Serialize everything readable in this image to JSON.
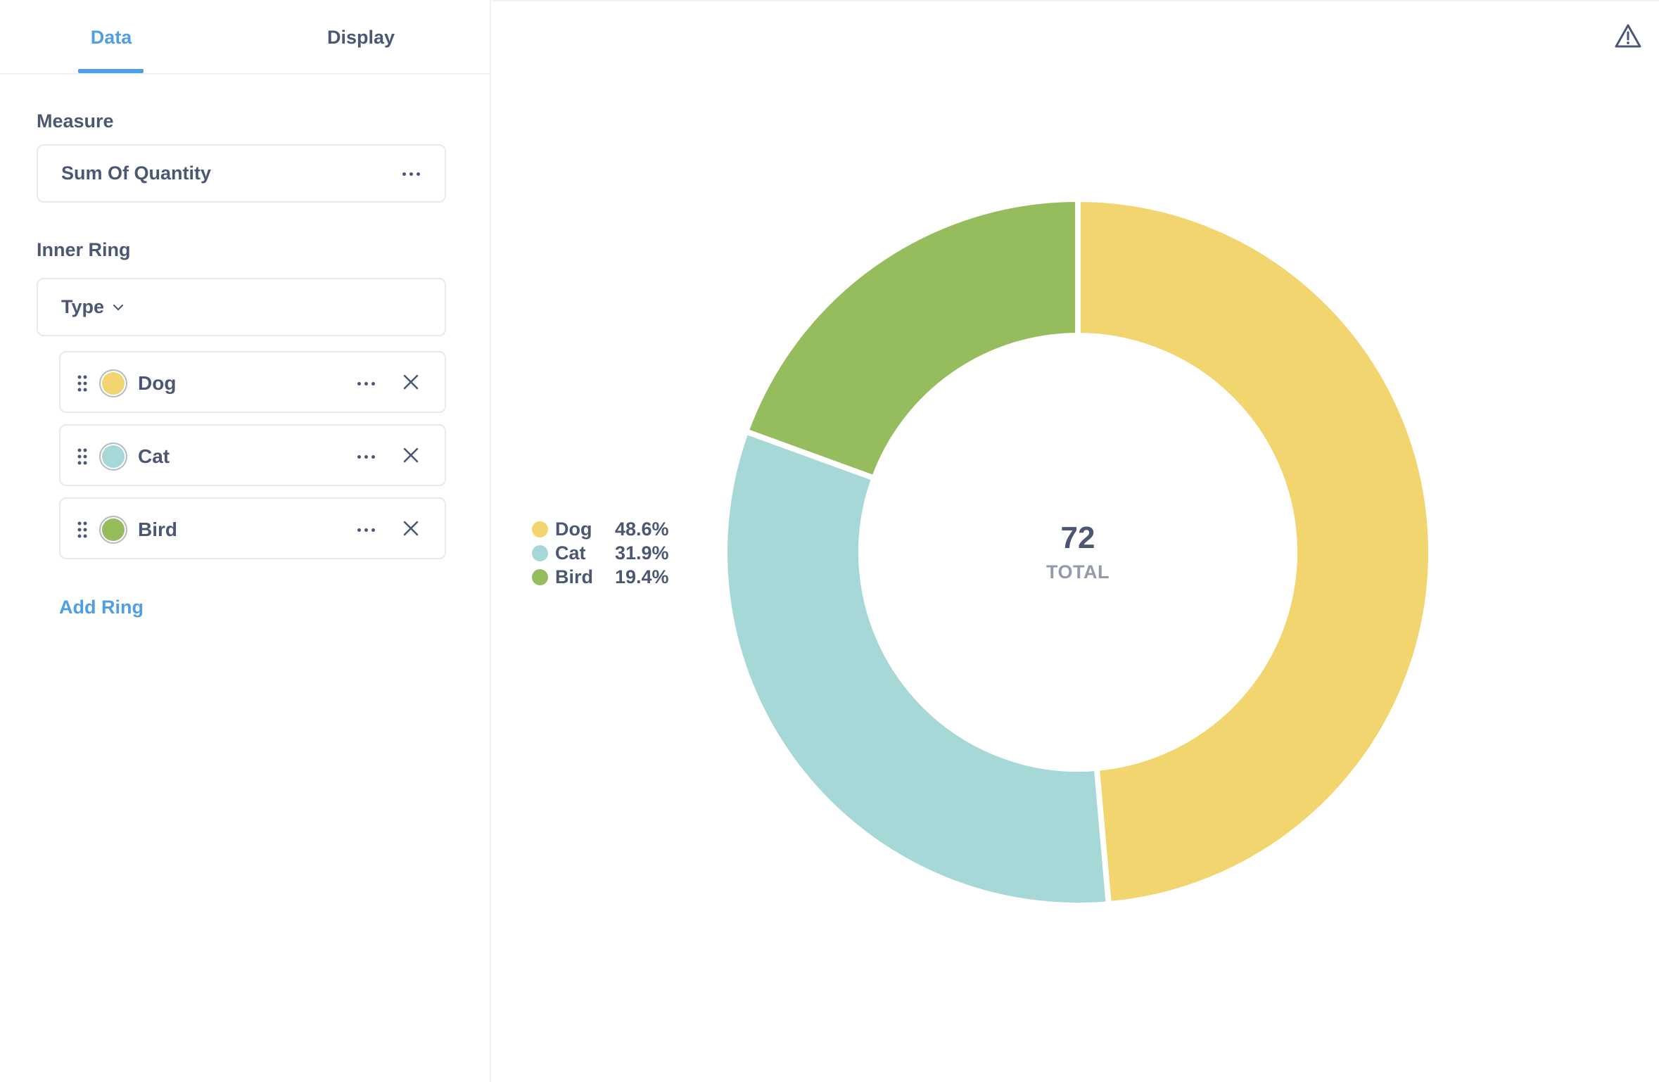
{
  "tabs": [
    {
      "label": "Data",
      "active": true
    },
    {
      "label": "Display",
      "active": false
    }
  ],
  "measure": {
    "label": "Measure",
    "value": "Sum Of Quantity",
    "menu_icon": "ellipsis-icon"
  },
  "inner_ring": {
    "label": "Inner Ring",
    "dimension": "Type",
    "items": [
      {
        "label": "Dog",
        "color": "#f2d56e"
      },
      {
        "label": "Cat",
        "color": "#a7d8d8"
      },
      {
        "label": "Bird",
        "color": "#95bd5e"
      }
    ]
  },
  "add_ring_label": "Add Ring",
  "header_icons": {
    "warning": "warning-triangle-icon"
  },
  "chart_data": {
    "type": "pie",
    "categories": [
      "Dog",
      "Cat",
      "Bird"
    ],
    "values": [
      35,
      23,
      14
    ],
    "percentages": [
      "48.6%",
      "31.9%",
      "19.4%"
    ],
    "colors": [
      "#f2d56e",
      "#a7d8d8",
      "#95bd5e"
    ],
    "total_value": "72",
    "total_label": "TOTAL",
    "legend_placement": "left"
  }
}
